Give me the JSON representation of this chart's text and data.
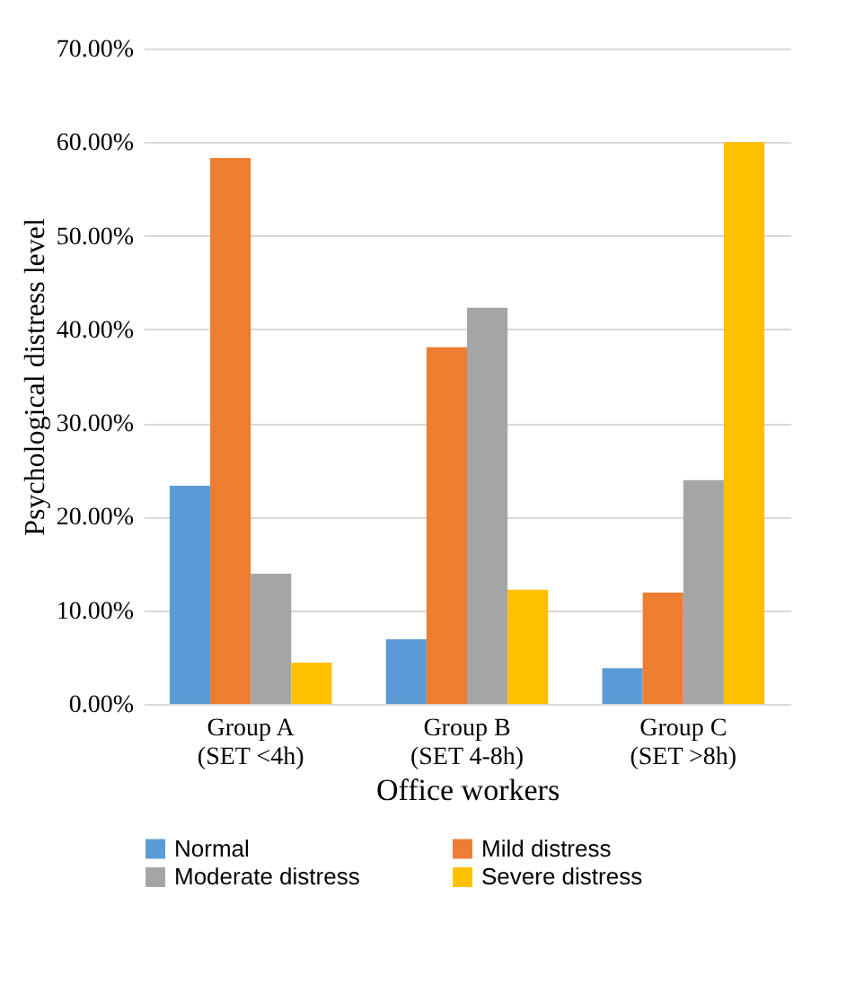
{
  "chart_data": {
    "type": "bar",
    "xlabel": "Office workers",
    "ylabel": "Psychological distress level",
    "categories": [
      "Group A\n(SET <4h)",
      "Group B\n(SET 4-8h)",
      "Group C\n(SET >8h)"
    ],
    "series": [
      {
        "name": "Normal",
        "color": "#5b9bd5",
        "values": [
          23.3,
          6.9,
          3.8
        ]
      },
      {
        "name": "Mild distress",
        "color": "#ed7d31",
        "values": [
          58.3,
          38.1,
          11.9
        ]
      },
      {
        "name": "Moderate distress",
        "color": "#a5a5a5",
        "values": [
          13.9,
          42.3,
          23.9
        ]
      },
      {
        "name": "Severe distress",
        "color": "#ffc000",
        "values": [
          4.4,
          12.2,
          60.0
        ]
      }
    ],
    "ylim": [
      0,
      70
    ],
    "yticks": [
      {
        "value": 0,
        "label": "0.00%"
      },
      {
        "value": 10,
        "label": "10.00%"
      },
      {
        "value": 20,
        "label": "20.00%"
      },
      {
        "value": 30,
        "label": "30.00%"
      },
      {
        "value": 40,
        "label": "40.00%"
      },
      {
        "value": 50,
        "label": "50.00%"
      },
      {
        "value": 60,
        "label": "60.00%"
      },
      {
        "value": 70,
        "label": "70.00%"
      }
    ],
    "grid": "y",
    "legend": "bottom"
  }
}
